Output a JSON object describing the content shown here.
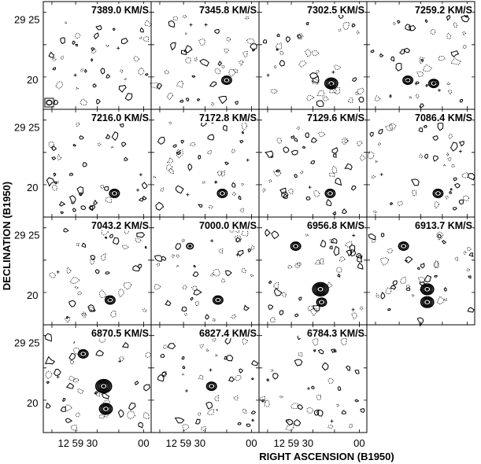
{
  "figure": {
    "velocity_labels": [
      "7389.0 KM/S",
      "7345.8 KM/S",
      "7302.5 KM/S",
      "7259.2 KM/S",
      "7216.0 KM/S",
      "7172.8 KM/S",
      "7129.6 KM/S",
      "7086.4 KM/S",
      "7043.2 KM/S",
      "7000.0 KM/S",
      "6956.8 KM/S",
      "6913.7 KM/S",
      "6870.5 KM/S",
      "6827.4 KM/S",
      "6784.3 KM/S"
    ],
    "ylabel": "DECLINATION (B1950)",
    "xlabel": "RIGHT ASCENSION (B1950)",
    "y_ticks": [
      "29 25",
      "20"
    ],
    "x_ticks": [
      "12 59 30",
      "00"
    ],
    "colors": {
      "ink": "#000000",
      "background": "#ffffff"
    }
  }
}
